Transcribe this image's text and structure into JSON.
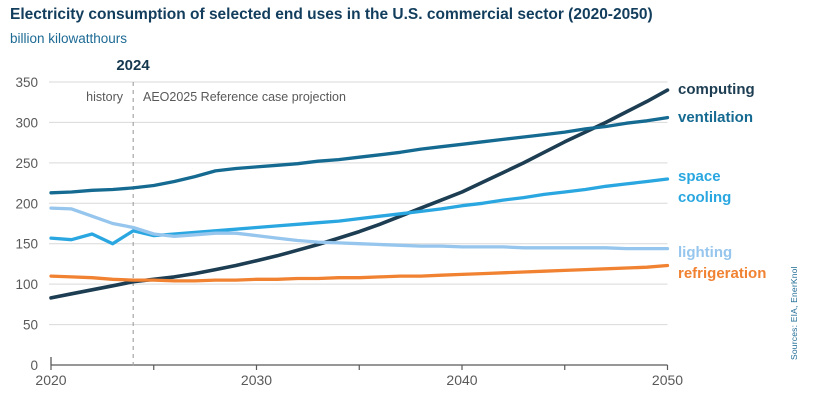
{
  "header": {
    "title": "Electricity consumption of selected end uses in the U.S. commercial sector (2020-2050)",
    "subtitle": "billion kilowatthours"
  },
  "annotations": {
    "divider_year": "2024",
    "history_label": "history",
    "projection_label": "AEO2025 Reference case projection"
  },
  "source_note": "Sources: EIA, EnerKnol",
  "colors": {
    "title": "#123d5c",
    "subtitle": "#1d6a94",
    "annotation_gray": "#595959",
    "gridline": "#d9d9d9",
    "axis": "#595959",
    "divider_dash": "#a6a6a6",
    "computing": "#1c3d52",
    "ventilation": "#156a91",
    "space_cooling": "#2aa7e0",
    "lighting": "#96c6ed",
    "refrigeration": "#f08232"
  },
  "chart_data": {
    "type": "line",
    "title": "Electricity consumption of selected end uses in the U.S. commercial sector (2020-2050)",
    "xlabel": "",
    "ylabel": "billion kilowatthours",
    "xlim": [
      2020,
      2050
    ],
    "ylim": [
      0,
      350
    ],
    "y_ticks": [
      0,
      50,
      100,
      150,
      200,
      250,
      300,
      350
    ],
    "x_ticks_minor": [
      2020,
      2025,
      2030,
      2035,
      2040,
      2045,
      2050
    ],
    "x_ticks_labeled": [
      2020,
      2030,
      2040,
      2050
    ],
    "grid": "horizontal",
    "divider_x": 2024,
    "history_range": [
      2020,
      2024
    ],
    "projection_range": [
      2024,
      2050
    ],
    "legend_position": "right",
    "x": [
      2020,
      2021,
      2022,
      2023,
      2024,
      2025,
      2026,
      2027,
      2028,
      2029,
      2030,
      2031,
      2032,
      2033,
      2034,
      2035,
      2036,
      2037,
      2038,
      2039,
      2040,
      2041,
      2042,
      2043,
      2044,
      2045,
      2046,
      2047,
      2048,
      2049,
      2050
    ],
    "series": [
      {
        "name": "computing",
        "color": "#1c3d52",
        "label_lines": [
          "computing"
        ],
        "values": [
          83,
          88,
          93,
          98,
          103,
          106,
          109,
          113,
          118,
          123,
          129,
          135,
          142,
          149,
          157,
          165,
          174,
          184,
          194,
          204,
          214,
          226,
          238,
          250,
          263,
          276,
          288,
          300,
          313,
          326,
          340
        ]
      },
      {
        "name": "ventilation",
        "color": "#156a91",
        "label_lines": [
          "ventilation"
        ],
        "values": [
          213,
          214,
          216,
          217,
          219,
          222,
          227,
          233,
          240,
          243,
          245,
          247,
          249,
          252,
          254,
          257,
          260,
          263,
          267,
          270,
          273,
          276,
          279,
          282,
          285,
          288,
          292,
          295,
          299,
          302,
          306
        ]
      },
      {
        "name": "space cooling",
        "color": "#2aa7e0",
        "label_lines": [
          "space",
          "cooling"
        ],
        "values": [
          157,
          155,
          162,
          150,
          166,
          160,
          162,
          164,
          166,
          168,
          170,
          172,
          174,
          176,
          178,
          181,
          184,
          187,
          190,
          193,
          197,
          200,
          204,
          207,
          211,
          214,
          217,
          221,
          224,
          227,
          230
        ]
      },
      {
        "name": "lighting",
        "color": "#96c6ed",
        "label_lines": [
          "lighting"
        ],
        "values": [
          194,
          193,
          184,
          175,
          170,
          162,
          159,
          161,
          163,
          163,
          160,
          157,
          154,
          152,
          151,
          150,
          149,
          148,
          147,
          147,
          146,
          146,
          146,
          145,
          145,
          145,
          145,
          145,
          144,
          144,
          144
        ]
      },
      {
        "name": "refrigeration",
        "color": "#f08232",
        "label_lines": [
          "refrigeration"
        ],
        "values": [
          110,
          109,
          108,
          106,
          105,
          105,
          104,
          104,
          105,
          105,
          106,
          106,
          107,
          107,
          108,
          108,
          109,
          110,
          110,
          111,
          112,
          113,
          114,
          115,
          116,
          117,
          118,
          119,
          120,
          121,
          123
        ]
      }
    ]
  }
}
